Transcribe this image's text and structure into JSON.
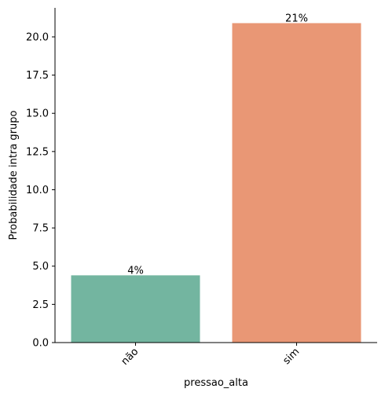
{
  "chart_data": {
    "type": "bar",
    "categories": [
      "não",
      "sim"
    ],
    "values": [
      4.4,
      20.9
    ],
    "data_labels": [
      "4%",
      "21%"
    ],
    "colors": [
      "#73b5a0",
      "#e99775"
    ],
    "xlabel": "pressao_alta",
    "ylabel": "Probabilidade intra grupo",
    "ylim": [
      0,
      21.9
    ],
    "yticks": [
      0.0,
      2.5,
      5.0,
      7.5,
      10.0,
      12.5,
      15.0,
      17.5,
      20.0
    ],
    "ytick_labels": [
      "0.0",
      "2.5",
      "5.0",
      "7.5",
      "10.0",
      "12.5",
      "15.0",
      "17.5",
      "20.0"
    ],
    "grid": false,
    "legend": "none",
    "spines": "left-bottom"
  }
}
